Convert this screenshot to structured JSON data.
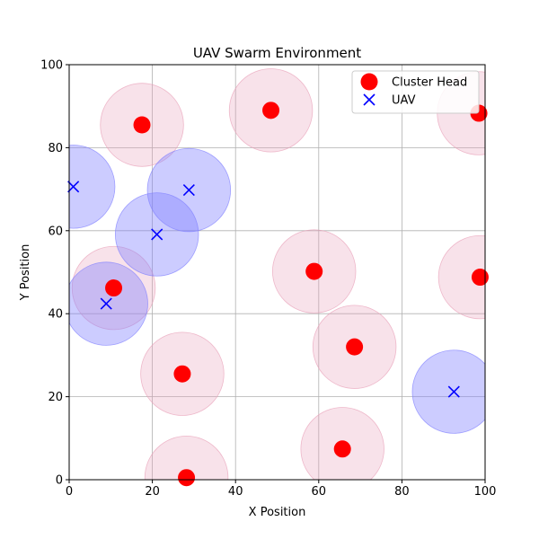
{
  "chart_data": {
    "type": "scatter",
    "title": "UAV Swarm Environment",
    "xlabel": "X Position",
    "ylabel": "Y Position",
    "xlim": [
      0,
      100
    ],
    "ylim": [
      0,
      100
    ],
    "xticks": [
      0,
      20,
      40,
      60,
      80,
      100
    ],
    "yticks": [
      0,
      20,
      40,
      60,
      80,
      100
    ],
    "grid": true,
    "legend_position": "top-right",
    "coverage_radius": 10,
    "series": [
      {
        "name": "Cluster Head",
        "marker": "circle",
        "color": "#ff0000",
        "range_color": "#e8a0b8",
        "points": [
          {
            "x": 17.5,
            "y": 85.5
          },
          {
            "x": 48.5,
            "y": 89.0
          },
          {
            "x": 98.5,
            "y": 88.3
          },
          {
            "x": 10.7,
            "y": 46.2
          },
          {
            "x": 58.9,
            "y": 50.2
          },
          {
            "x": 98.8,
            "y": 48.8
          },
          {
            "x": 68.6,
            "y": 32.0
          },
          {
            "x": 27.2,
            "y": 25.5
          },
          {
            "x": 65.7,
            "y": 7.4
          },
          {
            "x": 28.2,
            "y": 0.5
          }
        ]
      },
      {
        "name": "UAV",
        "marker": "x",
        "color": "#0000ff",
        "range_color": "#8080ff",
        "points": [
          {
            "x": 1.0,
            "y": 70.6
          },
          {
            "x": 28.8,
            "y": 69.8
          },
          {
            "x": 21.1,
            "y": 59.1
          },
          {
            "x": 8.9,
            "y": 42.4
          },
          {
            "x": 92.5,
            "y": 21.2
          }
        ]
      }
    ]
  }
}
